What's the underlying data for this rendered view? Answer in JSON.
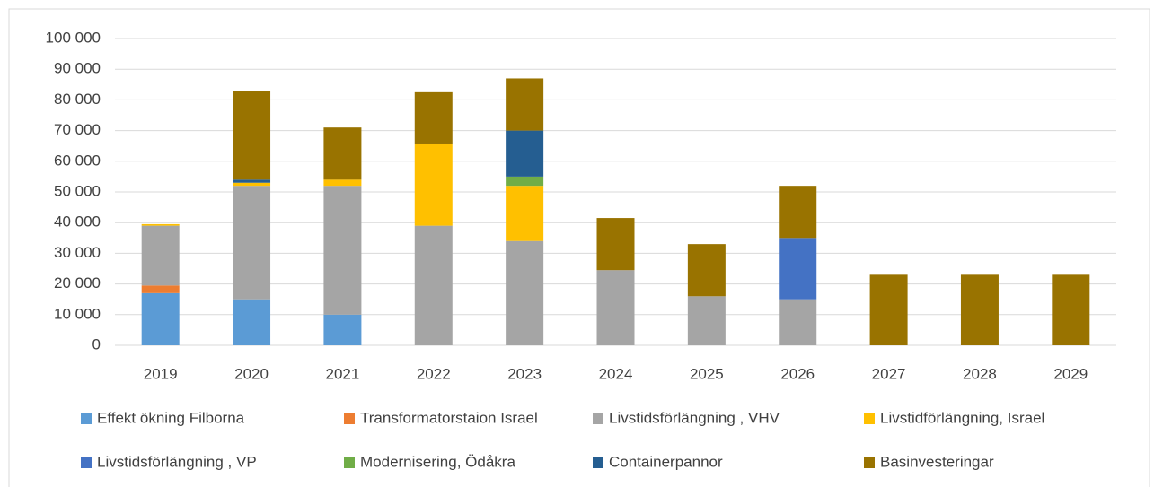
{
  "chart_data": {
    "type": "bar",
    "stacked": true,
    "categories": [
      "2019",
      "2020",
      "2021",
      "2022",
      "2023",
      "2024",
      "2025",
      "2026",
      "2027",
      "2028",
      "2029"
    ],
    "series": [
      {
        "name": "Effekt ökning Filborna",
        "color": "#5b9bd5",
        "values": [
          17000,
          15000,
          10000,
          null,
          null,
          null,
          null,
          null,
          null,
          null,
          null
        ]
      },
      {
        "name": "Transformatorstaion Israel",
        "color": "#ed7d31",
        "values": [
          2500,
          null,
          null,
          null,
          null,
          null,
          null,
          null,
          null,
          null,
          null
        ]
      },
      {
        "name": "Livstidsförlängning , VHV",
        "color": "#a5a5a5",
        "values": [
          19500,
          37000,
          42000,
          39000,
          34000,
          24500,
          16000,
          15000,
          null,
          null,
          null
        ]
      },
      {
        "name": "Livstidförlängning, Israel",
        "color": "#ffc000",
        "values": [
          500,
          1000,
          2000,
          26500,
          18000,
          null,
          null,
          null,
          null,
          null,
          null
        ]
      },
      {
        "name": "Livstidsförlängning , VP",
        "color": "#4472c4",
        "values": [
          null,
          null,
          null,
          null,
          null,
          null,
          null,
          20000,
          null,
          null,
          null
        ]
      },
      {
        "name": "Modernisering, Ödåkra",
        "color": "#70ad47",
        "values": [
          null,
          null,
          null,
          null,
          3000,
          null,
          null,
          null,
          null,
          null,
          null
        ]
      },
      {
        "name": "Containerpannor",
        "color": "#255e91",
        "values": [
          null,
          1000,
          null,
          null,
          15000,
          null,
          null,
          null,
          null,
          null,
          null
        ]
      },
      {
        "name": "Basinvesteringar",
        "color": "#997300",
        "values": [
          null,
          29000,
          17000,
          17000,
          17000,
          17000,
          17000,
          17000,
          23000,
          23000,
          23000
        ]
      }
    ],
    "ylim": [
      0,
      100000
    ],
    "yticks": [
      0,
      {
        "value": 10000,
        "label": "10 000"
      },
      {
        "value": 20000,
        "label": "20 000"
      },
      {
        "value": 30000,
        "label": "30 000"
      },
      {
        "value": 40000,
        "label": "40 000"
      },
      {
        "value": 50000,
        "label": "50 000"
      },
      {
        "value": 60000,
        "label": "60 000"
      },
      {
        "value": 70000,
        "label": "70 000"
      },
      {
        "value": 80000,
        "label": "80 000"
      },
      {
        "value": 90000,
        "label": "90 000"
      },
      {
        "value": 100000,
        "label": "100 000"
      }
    ],
    "grid": true,
    "legend": "bottom"
  }
}
